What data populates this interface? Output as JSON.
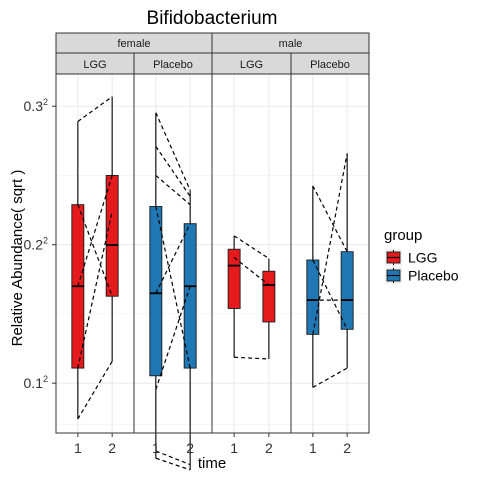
{
  "chart_data": {
    "type": "boxplot",
    "title": "Bifidobacterium",
    "xlabel": "time",
    "ylabel": "Relative Abundance( sqrt )",
    "y_scale": "sqrt",
    "ylim": [
      0.0041,
      0.1045
    ],
    "y_ticks": [
      {
        "value": 0.01,
        "base": "0.1",
        "exp": "2"
      },
      {
        "value": 0.04,
        "base": "0.2",
        "exp": "2"
      },
      {
        "value": 0.09,
        "base": "0.3",
        "exp": "2"
      }
    ],
    "x_ticks": [
      "1",
      "2"
    ],
    "grid": true,
    "legend": {
      "title": "group",
      "position": "right",
      "entries": [
        "LGG",
        "Placebo"
      ]
    },
    "colors": {
      "LGG": "#e41a1c",
      "Placebo": "#1f78b4"
    },
    "facets": [
      {
        "sex": "female",
        "group": "LGG",
        "boxes": [
          {
            "time": "1",
            "whisker_low": 0.0055,
            "q1": 0.0123,
            "median": 0.0289,
            "q3": 0.0524,
            "whisker_high": 0.0835
          },
          {
            "time": "2",
            "whisker_low": 0.0134,
            "q1": 0.0265,
            "median": 0.0399,
            "q3": 0.0625,
            "whisker_high": 0.0942
          }
        ],
        "pairs": [
          [
            0.0055,
            0.0134
          ],
          [
            0.0123,
            0.0502
          ],
          [
            0.0289,
            0.0625
          ],
          [
            0.0524,
            0.0265
          ],
          [
            0.0835,
            0.0942
          ]
        ]
      },
      {
        "sex": "female",
        "group": "Placebo",
        "boxes": [
          {
            "time": "1",
            "whisker_low": 0.0021,
            "q1": 0.0111,
            "median": 0.0272,
            "q3": 0.0518,
            "whisker_high": 0.0872
          },
          {
            "time": "2",
            "whisker_low": 0.0014,
            "q1": 0.0123,
            "median": 0.0289,
            "q3": 0.0463,
            "whisker_high": 0.0573
          }
        ],
        "pairs": [
          [
            0.0021,
            0.0014
          ],
          [
            0.0026,
            0.0017
          ],
          [
            0.0091,
            0.0289
          ],
          [
            0.0272,
            0.0463
          ],
          [
            0.0518,
            0.0123
          ],
          [
            0.0625,
            0.0524
          ],
          [
            0.0734,
            0.0552
          ],
          [
            0.0872,
            0.0573
          ]
        ]
      },
      {
        "sex": "male",
        "group": "LGG",
        "boxes": [
          {
            "time": "1",
            "whisker_low": 0.0141,
            "q1": 0.0237,
            "median": 0.0342,
            "q3": 0.0387,
            "whisker_high": 0.0426
          },
          {
            "time": "2",
            "whisker_low": 0.0138,
            "q1": 0.0208,
            "median": 0.0292,
            "q3": 0.0327,
            "whisker_high": 0.0361
          }
        ],
        "pairs": [
          [
            0.0141,
            0.0138
          ],
          [
            0.0364,
            0.0292
          ],
          [
            0.0426,
            0.0361
          ]
        ]
      },
      {
        "sex": "male",
        "group": "Placebo",
        "boxes": [
          {
            "time": "1",
            "whisker_low": 0.0094,
            "q1": 0.0183,
            "median": 0.0256,
            "q3": 0.0357,
            "whisker_high": 0.0588
          },
          {
            "time": "2",
            "whisker_low": 0.0123,
            "q1": 0.0193,
            "median": 0.0256,
            "q3": 0.038,
            "whisker_high": 0.0707
          }
        ],
        "pairs": [
          [
            0.0094,
            0.0123
          ],
          [
            0.0183,
            0.0707
          ],
          [
            0.0256,
            0.0256
          ],
          [
            0.0357,
            0.0193
          ],
          [
            0.0588,
            0.038
          ]
        ]
      }
    ]
  }
}
